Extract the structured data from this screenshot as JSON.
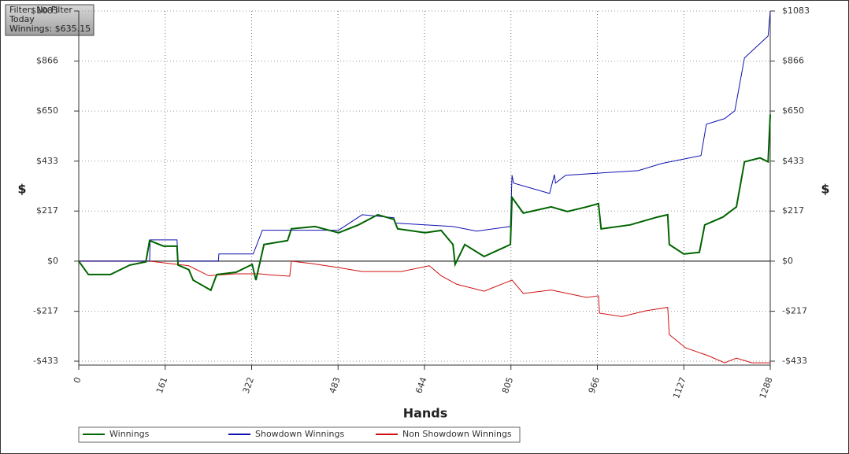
{
  "chart_data": {
    "type": "line",
    "annotations": [
      "Filter: No Filter",
      "Today",
      "Winnings: $635.15"
    ],
    "x_label": "Hands",
    "y_label": "$",
    "xlim": [
      0,
      1288
    ],
    "ylim": [
      -450,
      1083
    ],
    "xticks": [
      0,
      161,
      322,
      483,
      644,
      805,
      966,
      1127,
      1288
    ],
    "yticks": [
      {
        "value": -433,
        "label": "-$433"
      },
      {
        "value": -217,
        "label": "-$217"
      },
      {
        "value": 0,
        "label": "$0"
      },
      {
        "value": 217,
        "label": "$217"
      },
      {
        "value": 433,
        "label": "$433"
      },
      {
        "value": 650,
        "label": "$650"
      },
      {
        "value": 866,
        "label": "$866"
      },
      {
        "value": 1083,
        "label": "$1083"
      }
    ],
    "grid": true,
    "series": [
      {
        "name": "Winnings",
        "color": "#006400",
        "width": 2,
        "x": [
          0,
          18,
          59,
          95,
          125,
          132,
          158,
          183,
          185,
          205,
          213,
          246,
          257,
          293,
          323,
          330,
          345,
          389,
          396,
          440,
          484,
          521,
          557,
          587,
          594,
          645,
          675,
          697,
          701,
          719,
          755,
          804,
          807,
          828,
          880,
          910,
          946,
          968,
          973,
          1027,
          1078,
          1097,
          1100,
          1127,
          1156,
          1166,
          1200,
          1225,
          1240,
          1269,
          1284,
          1288
        ],
        "values": [
          0,
          -58,
          -58,
          -17,
          -3,
          89,
          65,
          65,
          -17,
          -37,
          -82,
          -126,
          -58,
          -48,
          -14,
          -82,
          72,
          89,
          140,
          150,
          123,
          157,
          201,
          181,
          140,
          123,
          133,
          72,
          -14,
          72,
          20,
          72,
          276,
          208,
          235,
          215,
          235,
          249,
          140,
          157,
          191,
          201,
          72,
          31,
          38,
          157,
          191,
          235,
          430,
          447,
          430,
          635.15
        ]
      },
      {
        "name": "Showdown Winnings",
        "color": "#1010b0",
        "width": 1,
        "x": [
          0,
          132,
          133,
          183,
          185,
          260,
          261,
          325,
          342,
          389,
          484,
          528,
          587,
          590,
          697,
          741,
          804,
          807,
          810,
          877,
          886,
          888,
          907,
          1042,
          1086,
          1159,
          1169,
          1203,
          1222,
          1240,
          1284,
          1288
        ],
        "values": [
          0,
          0,
          92,
          92,
          0,
          0,
          31,
          31,
          134,
          134,
          134,
          201,
          188,
          165,
          150,
          130,
          150,
          372,
          338,
          293,
          375,
          338,
          372,
          392,
          423,
          457,
          593,
          617,
          651,
          880,
          975,
          1081
        ]
      },
      {
        "name": "Non Showdown Winnings",
        "color": "#d01010",
        "width": 1,
        "x": [
          0,
          132,
          158,
          205,
          242,
          293,
          337,
          359,
          393,
          396,
          433,
          484,
          528,
          601,
          653,
          675,
          704,
          755,
          807,
          828,
          880,
          946,
          968,
          970,
          1012,
          1056,
          1097,
          1100,
          1130,
          1173,
          1203,
          1225,
          1254,
          1288
        ],
        "values": [
          0,
          0,
          -7,
          -20,
          -63,
          -55,
          -55,
          -60,
          -65,
          0,
          -10,
          -28,
          -45,
          -45,
          -20,
          -63,
          -100,
          -130,
          -82,
          -140,
          -125,
          -157,
          -150,
          -225,
          -240,
          -215,
          -200,
          -318,
          -375,
          -410,
          -440,
          -420,
          -440,
          -440
        ]
      }
    ]
  }
}
